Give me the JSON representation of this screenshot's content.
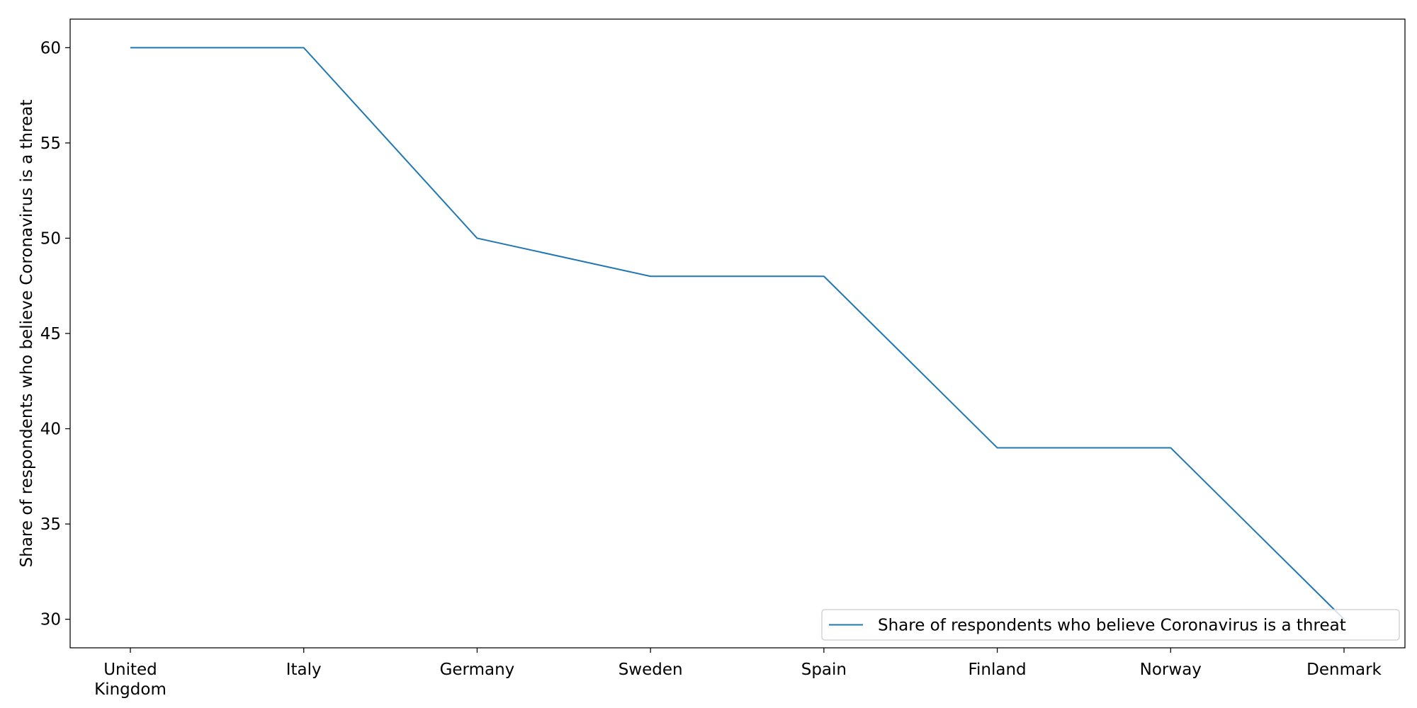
{
  "chart_data": {
    "type": "line",
    "categories": [
      "United Kingdom",
      "Italy",
      "Germany",
      "Sweden",
      "Spain",
      "Finland",
      "Norway",
      "Denmark"
    ],
    "category_lines": [
      [
        "United",
        "Kingdom"
      ],
      [
        "Italy"
      ],
      [
        "Germany"
      ],
      [
        "Sweden"
      ],
      [
        "Spain"
      ],
      [
        "Finland"
      ],
      [
        "Norway"
      ],
      [
        "Denmark"
      ]
    ],
    "series": [
      {
        "name": "Share of respondents who believe Coronavirus is a threat",
        "values": [
          60,
          60,
          50,
          48,
          48,
          39,
          39,
          30
        ],
        "color": "#1f77b4"
      }
    ],
    "title": "",
    "xlabel": "",
    "ylabel": "Share of respondents who believe Coronavirus is a threat",
    "ylim": [
      28.5,
      61.5
    ],
    "yticks": [
      30,
      35,
      40,
      45,
      50,
      55,
      60
    ],
    "grid": false,
    "legend_position": "lower-right"
  }
}
